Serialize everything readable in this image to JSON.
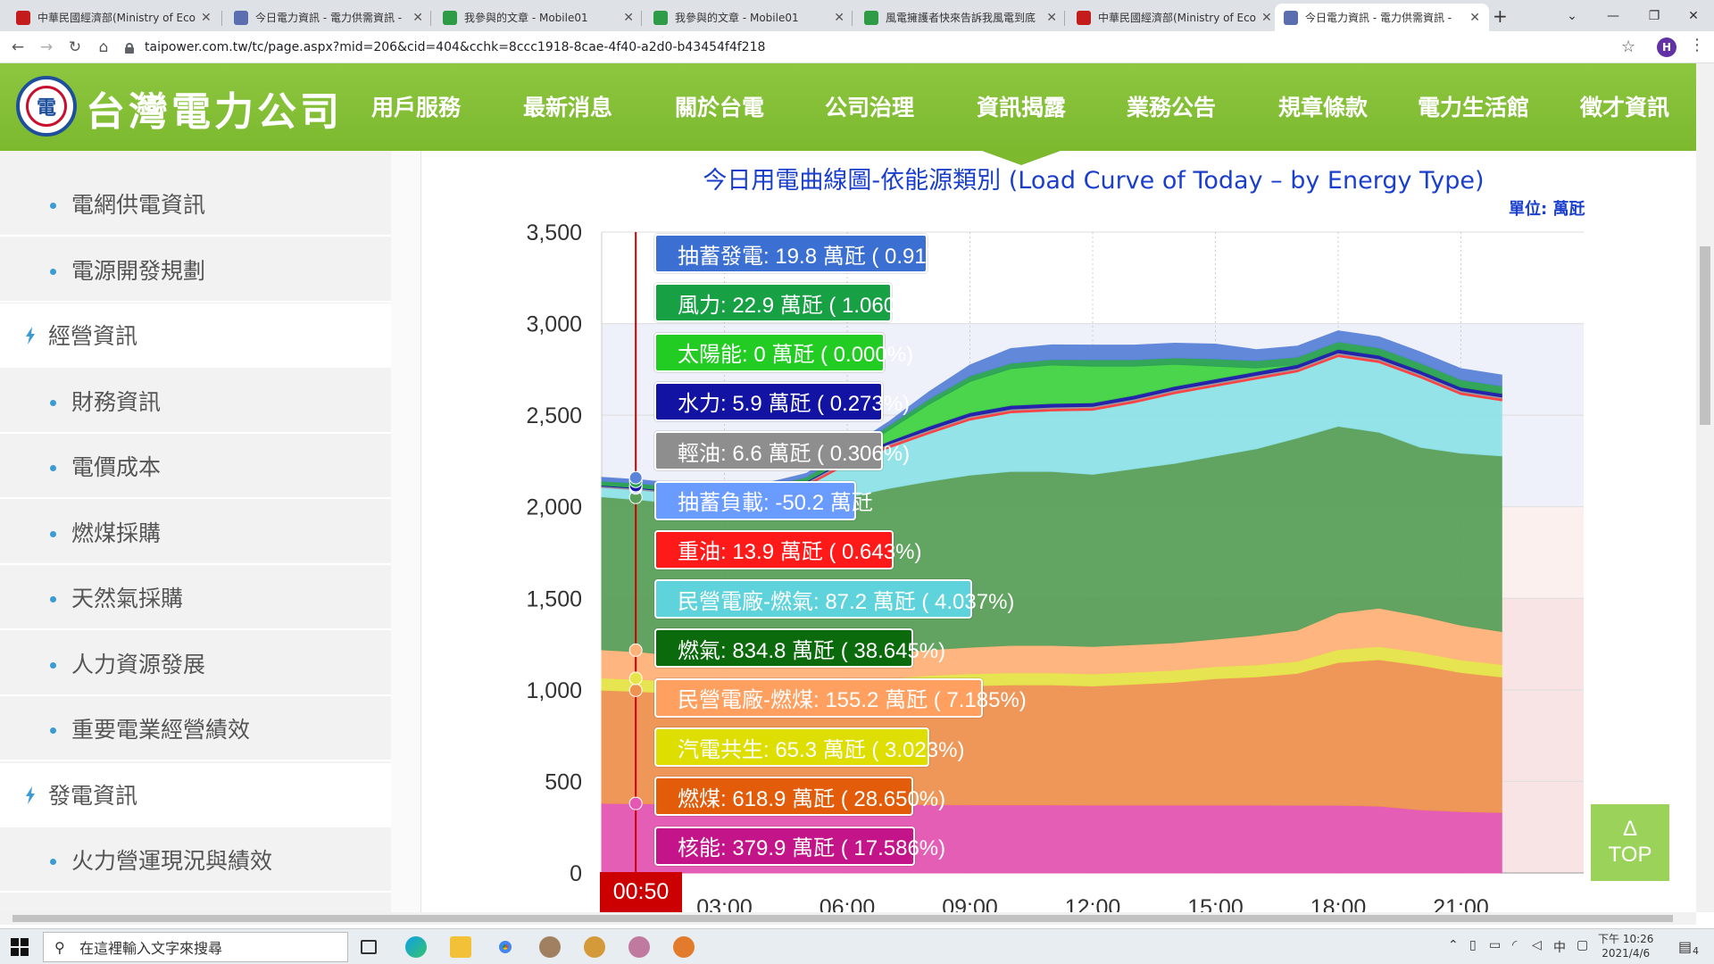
{
  "browser": {
    "tabs": [
      {
        "title": "中華民國經濟部(Ministry of Eco",
        "icon": "moea-favicon",
        "active": false
      },
      {
        "title": "今日電力資訊 - 電力供需資訊 - ",
        "icon": "taipower-favicon",
        "active": false
      },
      {
        "title": "我參與的文章 - Mobile01",
        "icon": "mobile01-favicon",
        "active": false
      },
      {
        "title": "我參與的文章 - Mobile01",
        "icon": "mobile01-favicon",
        "active": false
      },
      {
        "title": "風電擁護者快來告訴我風電到底",
        "icon": "mobile01-favicon",
        "active": false
      },
      {
        "title": "中華民國經濟部(Ministry of Eco",
        "icon": "moea-favicon",
        "active": false
      },
      {
        "title": "今日電力資訊 - 電力供需資訊 - ",
        "icon": "taipower-favicon",
        "active": true
      }
    ],
    "url": "taipower.com.tw/tc/page.aspx?mid=206&cid=404&cchk=8ccc1918-8cae-4f40-a2d0-b43454f4f218",
    "profile_initial": "H"
  },
  "site": {
    "logo_text": "台灣電力公司",
    "menu": [
      "用戶服務",
      "最新消息",
      "關於台電",
      "公司治理",
      "資訊揭露",
      "業務公告",
      "規章條款",
      "電力生活館",
      "徵才資訊"
    ],
    "active_menu": "資訊揭露"
  },
  "sidebar": {
    "items": [
      {
        "label": "電網供電資訊",
        "kind": "sub"
      },
      {
        "label": "電源開發規劃",
        "kind": "sub"
      },
      {
        "label": "經營資訊",
        "kind": "cat"
      },
      {
        "label": "財務資訊",
        "kind": "sub"
      },
      {
        "label": "電價成本",
        "kind": "sub"
      },
      {
        "label": "燃煤採購",
        "kind": "sub"
      },
      {
        "label": "天然氣採購",
        "kind": "sub"
      },
      {
        "label": "人力資源發展",
        "kind": "sub"
      },
      {
        "label": "重要電業經營績效",
        "kind": "sub"
      },
      {
        "label": "發電資訊",
        "kind": "cat"
      },
      {
        "label": "火力營運現況與績效",
        "kind": "sub"
      }
    ]
  },
  "chart_data": {
    "type": "area",
    "title": "今日用電曲線圖-依能源類別 (Load Curve of Today – by Energy Type)",
    "unit_label": "單位: 萬瓩",
    "ylim": [
      0,
      3500
    ],
    "yticks": [
      "3,500",
      "3,000",
      "2,500",
      "2,000",
      "1,500",
      "1,000",
      "500",
      "0"
    ],
    "ytick_values": [
      3500,
      3000,
      2500,
      2000,
      1500,
      1000,
      500,
      0
    ],
    "xlim": [
      0,
      24
    ],
    "xticks": [
      "03:00",
      "06:00",
      "09:00",
      "12:00",
      "15:00",
      "18:00",
      "21:00"
    ],
    "xtick_values": [
      3,
      6,
      9,
      12,
      15,
      18,
      21
    ],
    "current_time_label": "00:50",
    "current_time_hours": 0.833,
    "x": [
      0,
      1,
      2,
      3,
      4,
      5,
      6,
      7,
      8,
      9,
      10,
      11,
      12,
      13,
      14,
      15,
      16,
      17,
      18,
      19,
      20,
      21,
      22
    ],
    "series": [
      {
        "name": "核能",
        "color": "#e457b3",
        "values": [
          380,
          378,
          378,
          377,
          377,
          376,
          375,
          374,
          373,
          372,
          372,
          372,
          371,
          371,
          371,
          371,
          371,
          370,
          370,
          365,
          345,
          335,
          330
        ]
      },
      {
        "name": "燃煤",
        "color": "#ee9352",
        "values": [
          619,
          612,
          600,
          592,
          585,
          580,
          590,
          620,
          640,
          650,
          655,
          655,
          650,
          660,
          670,
          690,
          700,
          720,
          780,
          800,
          790,
          760,
          740
        ]
      },
      {
        "name": "汽電共生",
        "color": "#e6e64a",
        "values": [
          65,
          66,
          66,
          66,
          66,
          66,
          66,
          66,
          66,
          66,
          66,
          66,
          66,
          66,
          66,
          66,
          66,
          66,
          70,
          72,
          70,
          68,
          68
        ]
      },
      {
        "name": "民營電廠-燃煤",
        "color": "#ffb37a",
        "values": [
          155,
          150,
          140,
          140,
          140,
          140,
          140,
          140,
          140,
          145,
          150,
          150,
          150,
          150,
          150,
          150,
          160,
          170,
          200,
          210,
          200,
          190,
          180
        ]
      },
      {
        "name": "燃氣",
        "color": "#5aa05a",
        "values": [
          835,
          830,
          830,
          840,
          850,
          860,
          880,
          900,
          920,
          940,
          950,
          950,
          940,
          960,
          980,
          1000,
          1020,
          1050,
          1020,
          960,
          920,
          940,
          960
        ]
      },
      {
        "name": "民營電廠-燃氣",
        "color": "#8fe3e8",
        "values": [
          87,
          90,
          90,
          90,
          90,
          90,
          180,
          220,
          260,
          300,
          320,
          330,
          350,
          360,
          380,
          380,
          380,
          360,
          380,
          380,
          380,
          320,
          300
        ]
      },
      {
        "name": "重油",
        "color": "#ff3b3b",
        "values": [
          14,
          14,
          14,
          14,
          14,
          14,
          14,
          14,
          14,
          14,
          14,
          14,
          14,
          14,
          14,
          14,
          14,
          14,
          14,
          14,
          14,
          14,
          14
        ]
      },
      {
        "name": "抽蓄負載",
        "color": "#7faaff",
        "values": [
          -50,
          -50,
          -50,
          -50,
          -50,
          0,
          0,
          0,
          0,
          0,
          0,
          0,
          0,
          0,
          0,
          0,
          0,
          0,
          0,
          0,
          0,
          0,
          0
        ]
      },
      {
        "name": "輕油",
        "color": "#9a9a9a",
        "values": [
          7,
          7,
          7,
          7,
          7,
          7,
          7,
          7,
          7,
          7,
          7,
          7,
          7,
          7,
          7,
          7,
          7,
          7,
          7,
          7,
          7,
          7,
          7
        ]
      },
      {
        "name": "水力",
        "color": "#1a1aa8",
        "values": [
          6,
          6,
          6,
          6,
          6,
          6,
          10,
          15,
          20,
          20,
          20,
          20,
          20,
          20,
          20,
          20,
          20,
          20,
          20,
          20,
          20,
          20,
          20
        ]
      },
      {
        "name": "太陽能",
        "color": "#43d443",
        "values": [
          0,
          0,
          0,
          0,
          0,
          0,
          10,
          60,
          120,
          170,
          200,
          210,
          200,
          160,
          120,
          70,
          20,
          0,
          0,
          0,
          0,
          0,
          0
        ]
      },
      {
        "name": "風力",
        "color": "#29a352",
        "values": [
          23,
          23,
          23,
          23,
          23,
          23,
          25,
          25,
          28,
          30,
          30,
          30,
          35,
          35,
          35,
          40,
          40,
          40,
          40,
          40,
          40,
          40,
          40
        ]
      },
      {
        "name": "抽蓄發電",
        "color": "#5b83d9",
        "values": [
          20,
          20,
          20,
          20,
          20,
          20,
          20,
          20,
          40,
          60,
          80,
          80,
          80,
          80,
          80,
          80,
          60,
          60,
          60,
          60,
          60,
          60,
          60
        ]
      }
    ],
    "tooltip": [
      {
        "text": "抽蓄發電: 19.8 萬瓩 ( 0.917%)",
        "color": "#3b6fd1"
      },
      {
        "text": "風力: 22.9 萬瓩 ( 1.060%)",
        "color": "#17a044"
      },
      {
        "text": "太陽能: 0 萬瓩 ( 0.000%)",
        "color": "#22cc22"
      },
      {
        "text": "水力: 5.9 萬瓩 ( 0.273%)",
        "color": "#1313a3"
      },
      {
        "text": "輕油: 6.6 萬瓩 ( 0.306%)",
        "color": "#8e8e8e"
      },
      {
        "text": "抽蓄負載: -50.2 萬瓩",
        "color": "#6a9bff"
      },
      {
        "text": "重油: 13.9 萬瓩 ( 0.643%)",
        "color": "#ff1a1a"
      },
      {
        "text": "民營電廠-燃氣: 87.2 萬瓩 ( 4.037%)",
        "color": "#5fd3dc"
      },
      {
        "text": "燃氣: 834.8 萬瓩 ( 38.645%)",
        "color": "#0b6a0b"
      },
      {
        "text": "民營電廠-燃煤: 155.2 萬瓩 ( 7.185%)",
        "color": "#ffa060"
      },
      {
        "text": "汽電共生: 65.3 萬瓩 ( 3.023%)",
        "color": "#dede00"
      },
      {
        "text": "燃煤: 618.9 萬瓩 ( 28.650%)",
        "color": "#e25c0a"
      },
      {
        "text": "核能: 379.9 萬瓩 ( 17.586%)",
        "color": "#c4148a"
      }
    ]
  },
  "top_button": {
    "arrow": "Δ",
    "label": "TOP"
  },
  "taskbar": {
    "search_placeholder": "在這裡輸入文字來搜尋",
    "ime": "中",
    "time": "下午 10:26",
    "date": "2021/4/6",
    "notifications": "4"
  }
}
